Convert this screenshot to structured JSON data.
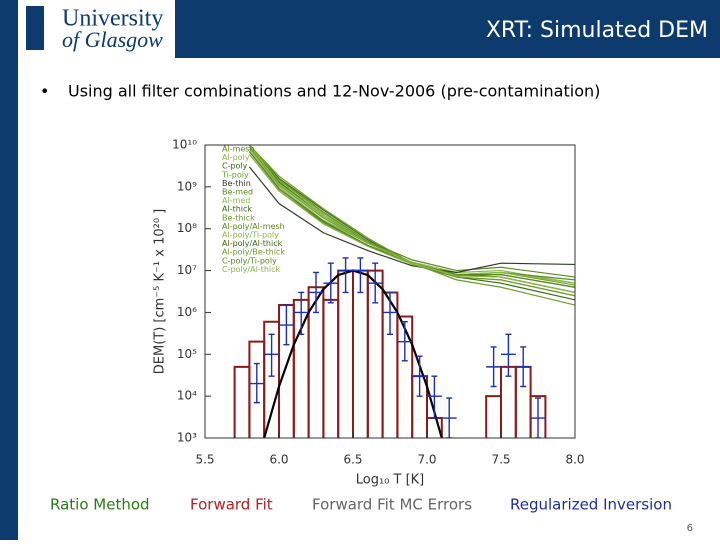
{
  "header": {
    "logo_line1": "University",
    "logo_line2": "of Glasgow",
    "title": "XRT: Simulated DEM"
  },
  "bullet": "Using all filter combinations and 12-Nov-2006 (pre-contamination)",
  "page_number": "6",
  "chart_data": {
    "type": "line",
    "xlabel": "Log₁₀ T [K]",
    "ylabel": "DEM(T) [cm⁻⁵ K⁻¹ x 10²⁰ ]",
    "log_y": true,
    "xlim": [
      5.5,
      8.0
    ],
    "ylim": [
      1000,
      10000000000.0
    ],
    "xticks": [
      5.5,
      {
        "value": 6,
        "label": "6.0"
      },
      6.5,
      {
        "value": 7,
        "label": "7.0"
      },
      7.5,
      {
        "value": 8,
        "label": "8.0"
      }
    ],
    "yticks": [
      {
        "value": 1000,
        "label": "10³"
      },
      {
        "value": 10000.0,
        "label": "10⁴"
      },
      {
        "value": 100000.0,
        "label": "10⁵"
      },
      {
        "value": 1000000.0,
        "label": "10⁶"
      },
      {
        "value": 10000000.0,
        "label": "10⁷"
      },
      {
        "value": 100000000.0,
        "label": "10⁸"
      },
      {
        "value": 1000000000.0,
        "label": "10⁹"
      },
      {
        "value": 10000000000.0,
        "label": "10¹⁰"
      }
    ],
    "ratio_method_label": "Ratio Method",
    "series": [
      {
        "type": "line",
        "name": "Al-mesh",
        "color": "#5a8a1e",
        "x": [
          5.8,
          6.0,
          6.3,
          6.6,
          6.9,
          7.2,
          7.5,
          8.0
        ],
        "values": [
          10000000000.0,
          1200000000.0,
          200000000.0,
          50000000.0,
          18000000.0,
          10000000.0,
          12000000.0,
          7000000.0
        ]
      },
      {
        "type": "line",
        "name": "Al-poly",
        "color": "#8cb84a",
        "x": [
          5.8,
          6.0,
          6.3,
          6.6,
          6.9,
          7.2,
          7.5,
          8.0
        ],
        "values": [
          8000000000.0,
          1000000000.0,
          160000000.0,
          45000000.0,
          16000000.0,
          9000000.0,
          10000000.0,
          5000000.0
        ]
      },
      {
        "type": "line",
        "name": "C-poly",
        "color": "#3a6b14",
        "x": [
          5.8,
          6.0,
          6.3,
          6.6,
          6.9,
          7.2,
          7.5,
          8.0
        ],
        "values": [
          7000000000.0,
          900000000.0,
          150000000.0,
          40000000.0,
          15000000.0,
          8000000.0,
          8000000.0,
          4000000.0
        ]
      },
      {
        "type": "line",
        "name": "Ti-poly",
        "color": "#6f9e2c",
        "x": [
          5.8,
          6.0,
          6.3,
          6.6,
          6.9,
          7.2,
          7.5,
          8.0
        ],
        "values": [
          9000000000.0,
          1100000000.0,
          180000000.0,
          45000000.0,
          15000000.0,
          8000000.0,
          9000000.0,
          4500000.0
        ]
      },
      {
        "type": "line",
        "name": "Be-thin",
        "color": "#2e3d2a",
        "x": [
          5.8,
          6.0,
          6.3,
          6.6,
          6.9,
          7.2,
          7.5,
          8.0
        ],
        "values": [
          3000000000.0,
          400000000.0,
          80000000.0,
          30000000.0,
          13000000.0,
          9000000.0,
          15000000.0,
          14000000.0
        ]
      },
      {
        "type": "line",
        "name": "Be-med",
        "color": "#5a8a1e",
        "x": [
          5.8,
          6.0,
          6.3,
          6.6,
          6.9,
          7.2,
          7.5,
          8.0
        ],
        "values": [
          10000000000.0,
          1500000000.0,
          250000000.0,
          50000000.0,
          15000000.0,
          8000000.0,
          7000000.0,
          3000000.0
        ]
      },
      {
        "type": "line",
        "name": "Al-med",
        "color": "#8cb84a",
        "x": [
          5.8,
          6.0,
          6.3,
          6.6,
          6.9,
          7.2,
          7.5,
          8.0
        ],
        "values": [
          10000000000.0,
          1400000000.0,
          220000000.0,
          48000000.0,
          14000000.0,
          7000000.0,
          6000000.0,
          2500000.0
        ]
      },
      {
        "type": "line",
        "name": "Al-thick",
        "color": "#3a6b14",
        "x": [
          5.8,
          6.0,
          6.3,
          6.6,
          6.9,
          7.2,
          7.5,
          8.0
        ],
        "values": [
          10000000000.0,
          1600000000.0,
          280000000.0,
          55000000.0,
          14000000.0,
          7000000.0,
          5000000.0,
          2000000.0
        ]
      },
      {
        "type": "line",
        "name": "Be-thick",
        "color": "#6f9e2c",
        "x": [
          5.8,
          6.0,
          6.3,
          6.6,
          6.9,
          7.2,
          7.5,
          8.0
        ],
        "values": [
          10000000000.0,
          1800000000.0,
          300000000.0,
          60000000.0,
          15000000.0,
          6000000.0,
          4000000.0,
          1500000.0
        ]
      },
      {
        "type": "line",
        "name": "Al-poly/Al-mesh",
        "color": "#5a8a1e",
        "x": [
          5.8,
          6.0,
          6.3,
          6.6,
          6.9,
          7.2,
          7.5,
          8.0
        ],
        "values": [
          6000000000.0,
          800000000.0,
          140000000.0,
          40000000.0,
          15000000.0,
          8000000.0,
          9000000.0,
          6000000.0
        ]
      },
      {
        "type": "line",
        "name": "Al-poly/Ti-poly",
        "color": "#8cb84a",
        "x": [
          5.8,
          6.0,
          6.3,
          6.6,
          6.9,
          7.2,
          7.5,
          8.0
        ],
        "values": [
          6000000000.0,
          800000000.0,
          130000000.0,
          38000000.0,
          14000000.0,
          8000000.0,
          9000000.0,
          5000000.0
        ]
      },
      {
        "type": "line",
        "name": "Al-poly/Al-thick",
        "color": "#3a6b14",
        "x": [
          5.8,
          6.0,
          6.3,
          6.6,
          6.9,
          7.2,
          7.5,
          8.0
        ],
        "values": [
          10000000000.0,
          1300000000.0,
          200000000.0,
          46000000.0,
          15000000.0,
          8000000.0,
          7000000.0,
          3000000.0
        ]
      },
      {
        "type": "line",
        "name": "Al-poly/Be-thick",
        "color": "#6f9e2c",
        "x": [
          5.8,
          6.0,
          6.3,
          6.6,
          6.9,
          7.2,
          7.5,
          8.0
        ],
        "values": [
          10000000000.0,
          1500000000.0,
          240000000.0,
          50000000.0,
          15000000.0,
          7000000.0,
          6000000.0,
          2500000.0
        ]
      },
      {
        "type": "line",
        "name": "C-poly/Ti-poly",
        "color": "#5a8a1e",
        "x": [
          5.8,
          6.0,
          6.3,
          6.6,
          6.9,
          7.2,
          7.5,
          8.0
        ],
        "values": [
          7000000000.0,
          900000000.0,
          150000000.0,
          40000000.0,
          15000000.0,
          8000000.0,
          8000000.0,
          4000000.0
        ]
      },
      {
        "type": "line",
        "name": "C-poly/Al-thick",
        "color": "#8cb84a",
        "x": [
          5.8,
          6.0,
          6.3,
          6.6,
          6.9,
          7.2,
          7.5,
          8.0
        ],
        "values": [
          10000000000.0,
          1200000000.0,
          200000000.0,
          45000000.0,
          15000000.0,
          7500000.0,
          7000000.0,
          3000000.0
        ]
      },
      {
        "type": "histogram",
        "name": "Forward Fit",
        "color": "#8b1a1a",
        "bins": [
          5.7,
          5.8,
          5.9,
          6.0,
          6.1,
          6.2,
          6.3,
          6.4,
          6.5,
          6.6,
          6.7,
          6.8,
          6.9,
          7.0,
          7.1,
          7.2,
          7.3,
          7.4,
          7.5,
          7.6,
          7.7,
          7.8,
          7.9,
          8.0
        ],
        "values": [
          50000.0,
          200000.0,
          600000.0,
          1500000.0,
          2000000.0,
          4000000.0,
          2000000.0,
          10000000.0,
          10000000.0,
          10000000.0,
          3000000.0,
          800000.0,
          30000.0,
          3000.0,
          null,
          null,
          null,
          10000.0,
          50000.0,
          50000.0,
          10000.0,
          null,
          null
        ]
      },
      {
        "type": "line",
        "name": "Forward Fit MC Errors",
        "color": "#000000",
        "x": [
          5.9,
          6.0,
          6.1,
          6.2,
          6.3,
          6.4,
          6.5,
          6.6,
          6.7,
          6.8,
          6.9,
          7.0,
          7.1
        ],
        "values": [
          1000.0,
          17000.0,
          170000.0,
          1000000.0,
          3600000.0,
          7800000.0,
          10000000.0,
          7800000.0,
          3600000.0,
          1000000.0,
          170000.0,
          17000.0,
          1000.0
        ]
      },
      {
        "type": "errorbar",
        "name": "Regularized Inversion",
        "color": "#1f2fb4",
        "xerr": 0.05,
        "x": [
          5.85,
          5.95,
          6.05,
          6.15,
          6.25,
          6.35,
          6.45,
          6.55,
          6.65,
          6.75,
          6.85,
          6.95,
          7.05,
          7.15,
          7.45,
          7.55,
          7.65,
          7.75
        ],
        "values": [
          20000.0,
          100000.0,
          500000.0,
          1000000.0,
          3000000.0,
          5000000.0,
          10000000.0,
          10000000.0,
          5000000.0,
          1000000.0,
          200000.0,
          30000.0,
          10000.0,
          3000.0,
          50000.0,
          100000.0,
          50000.0,
          3000.0
        ],
        "lower": [
          7000.0,
          30000.0,
          170000.0,
          300000.0,
          1000000.0,
          1700000.0,
          3000000.0,
          3000000.0,
          1700000.0,
          300000.0,
          70000.0,
          10000.0,
          3000.0,
          1000.0,
          17000.0,
          30000.0,
          17000.0,
          1000.0
        ],
        "upper": [
          60000.0,
          300000.0,
          1500000.0,
          3000000.0,
          9000000.0,
          15000000.0,
          20000000.0,
          20000000.0,
          15000000.0,
          3000000.0,
          600000.0,
          90000.0,
          30000.0,
          9000.0,
          150000.0,
          300000.0,
          150000.0,
          9000.0
        ]
      }
    ]
  }
}
